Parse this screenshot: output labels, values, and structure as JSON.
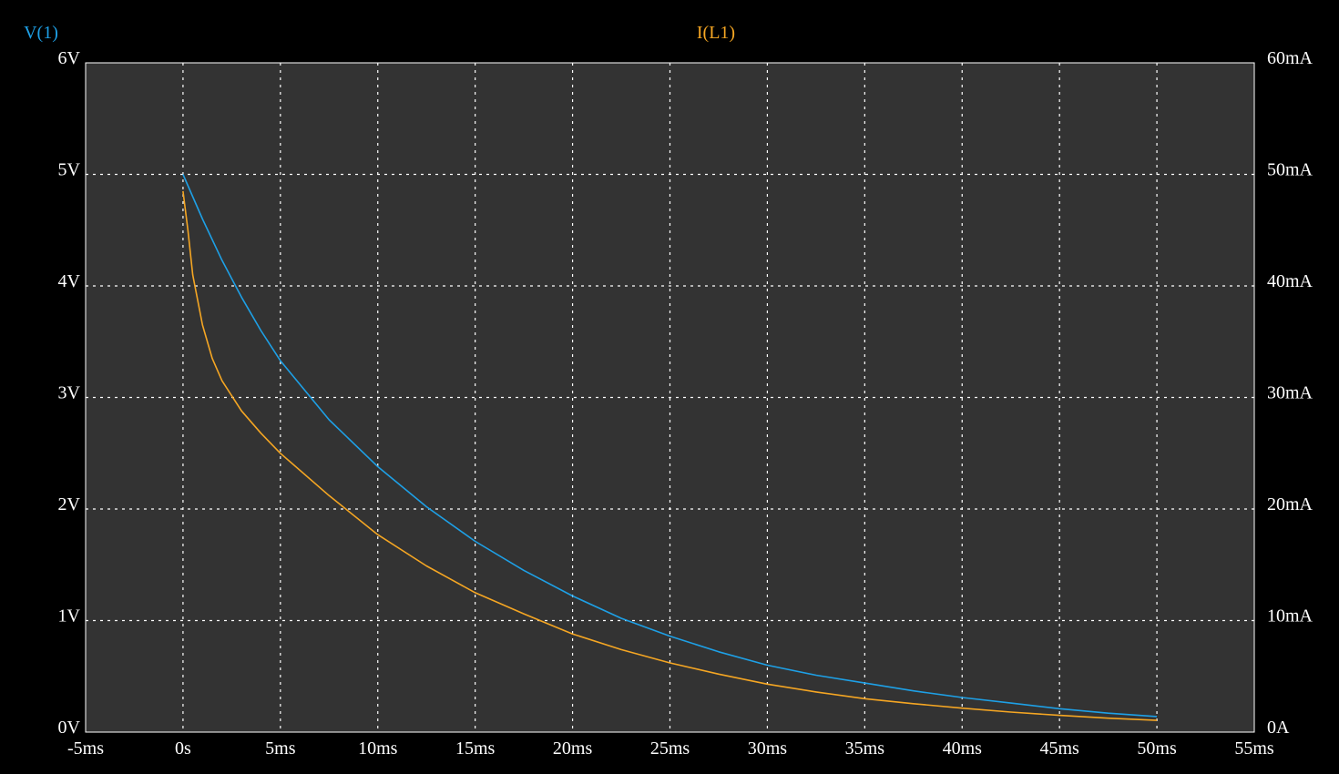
{
  "colors": {
    "background": "#000000",
    "plot_area": "#333333",
    "grid": "#ffffff",
    "text": "#ffffff",
    "v1": "#1ea0e6",
    "il1": "#f5a623"
  },
  "chart_data": {
    "type": "line",
    "grid": true,
    "legend": "top",
    "x_axis": {
      "range": [
        -5,
        55
      ],
      "unit": "ms",
      "ticks": [
        -5,
        0,
        5,
        10,
        15,
        20,
        25,
        30,
        35,
        40,
        45,
        50,
        55
      ],
      "tick_labels": [
        "-5ms",
        "0s",
        "5ms",
        "10ms",
        "15ms",
        "20ms",
        "25ms",
        "30ms",
        "35ms",
        "40ms",
        "45ms",
        "50ms",
        "55ms"
      ]
    },
    "y_left": {
      "range": [
        0,
        6
      ],
      "unit": "V",
      "ticks": [
        0,
        1,
        2,
        3,
        4,
        5,
        6
      ],
      "tick_labels": [
        "0V",
        "1V",
        "2V",
        "3V",
        "4V",
        "5V",
        "6V"
      ]
    },
    "y_right": {
      "range": [
        0,
        60
      ],
      "unit": "mA",
      "ticks": [
        0,
        10,
        20,
        30,
        40,
        50,
        60
      ],
      "tick_labels": [
        "0A",
        "10mA",
        "20mA",
        "30mA",
        "40mA",
        "50mA",
        "60mA"
      ]
    },
    "series": [
      {
        "name": "V(1)",
        "axis": "left",
        "color": "#1ea0e6",
        "x": [
          0,
          1,
          2,
          3,
          4,
          5,
          7.5,
          10,
          12.5,
          15,
          17.5,
          20,
          22.5,
          25,
          27.5,
          30,
          32.5,
          35,
          37.5,
          40,
          42.5,
          45,
          47.5,
          50
        ],
        "y": [
          5.0,
          4.6,
          4.23,
          3.9,
          3.6,
          3.33,
          2.8,
          2.38,
          2.02,
          1.71,
          1.45,
          1.22,
          1.02,
          0.86,
          0.72,
          0.6,
          0.51,
          0.44,
          0.37,
          0.31,
          0.26,
          0.21,
          0.17,
          0.14
        ]
      },
      {
        "name": "I(L1)",
        "axis": "right",
        "color": "#f5a623",
        "x": [
          0,
          0.25,
          0.5,
          1,
          1.5,
          2,
          3,
          4,
          5,
          7.5,
          10,
          12.5,
          15,
          17.5,
          20,
          22.5,
          25,
          27.5,
          30,
          32.5,
          35,
          37.5,
          40,
          42.5,
          45,
          47.5,
          50
        ],
        "y": [
          48.5,
          45,
          41,
          36.5,
          33.5,
          31.5,
          28.8,
          26.8,
          25.0,
          21.2,
          17.7,
          14.9,
          12.5,
          10.6,
          8.8,
          7.4,
          6.2,
          5.2,
          4.3,
          3.6,
          3.0,
          2.55,
          2.15,
          1.8,
          1.5,
          1.25,
          1.05
        ]
      }
    ]
  }
}
